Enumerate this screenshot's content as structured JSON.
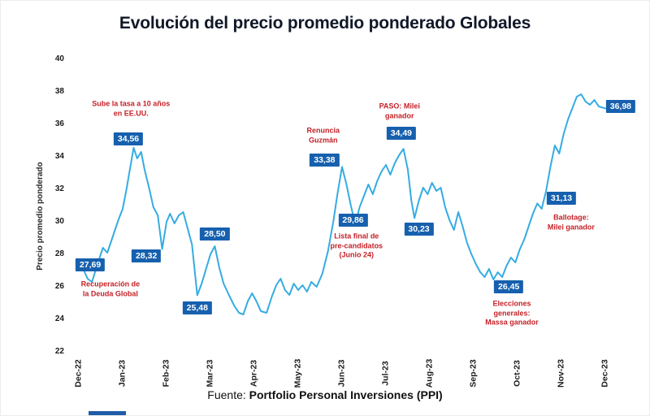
{
  "page": {
    "footer": {
      "prefix": "Fuente: ",
      "source_bold": "Portfolio Personal Inversiones (PPI)"
    },
    "banner_color": "#1f5ca9"
  },
  "chart_data": {
    "type": "line",
    "title": "Evolución del precio promedio ponderado Globales",
    "xlabel": "",
    "ylabel": "Precio promedio ponderado",
    "ylim": [
      22,
      40
    ],
    "ytick_values": [
      22,
      24,
      26,
      28,
      30,
      32,
      34,
      36,
      38,
      40
    ],
    "x_tick_labels": [
      "Dec-22",
      "Jan-23",
      "Feb-23",
      "Mar-23",
      "Apr-23",
      "May-23",
      "Jun-23",
      "Jul-23",
      "Aug-23",
      "Sep-23",
      "Oct-23",
      "Nov-23",
      "Dec-23"
    ],
    "grid": false,
    "legend": "none",
    "line_color": "#35ACE2",
    "label_box_color": "#1660AE",
    "annotation_color": "#C42127",
    "series": [
      {
        "name": "Precio promedio ponderado",
        "x": [
          0.0,
          0.1,
          0.2,
          0.3,
          0.45,
          0.55,
          0.65,
          0.8,
          0.9,
          1.0,
          1.08,
          1.15,
          1.25,
          1.33,
          1.42,
          1.5,
          1.6,
          1.7,
          1.8,
          1.9,
          2.0,
          2.08,
          2.18,
          2.28,
          2.38,
          2.48,
          2.58,
          2.7,
          2.8,
          2.9,
          3.0,
          3.1,
          3.2,
          3.3,
          3.42,
          3.55,
          3.65,
          3.75,
          3.85,
          3.95,
          4.05,
          4.15,
          4.28,
          4.4,
          4.5,
          4.6,
          4.7,
          4.8,
          4.9,
          5.0,
          5.1,
          5.2,
          5.3,
          5.42,
          5.55,
          5.68,
          5.8,
          5.9,
          6.0,
          6.1,
          6.2,
          6.3,
          6.4,
          6.5,
          6.6,
          6.7,
          6.8,
          6.9,
          7.0,
          7.1,
          7.2,
          7.3,
          7.4,
          7.5,
          7.58,
          7.65,
          7.75,
          7.85,
          7.95,
          8.05,
          8.15,
          8.25,
          8.35,
          8.45,
          8.55,
          8.65,
          8.75,
          8.85,
          8.95,
          9.05,
          9.15,
          9.25,
          9.35,
          9.45,
          9.55,
          9.65,
          9.75,
          9.85,
          9.95,
          10.05,
          10.15,
          10.25,
          10.35,
          10.45,
          10.55,
          10.65,
          10.75,
          10.85,
          10.95,
          11.05,
          11.15,
          11.25,
          11.35,
          11.45,
          11.55,
          11.65,
          11.75,
          11.85,
          12.0
        ],
        "y": [
          27.69,
          27.1,
          26.5,
          26.3,
          27.6,
          28.4,
          28.1,
          29.3,
          30.1,
          30.8,
          31.9,
          33.0,
          34.56,
          33.9,
          34.3,
          33.2,
          32.1,
          30.9,
          30.4,
          28.32,
          30.0,
          30.5,
          29.9,
          30.4,
          30.6,
          29.6,
          28.6,
          25.48,
          26.2,
          27.1,
          28.0,
          28.5,
          27.2,
          26.2,
          25.5,
          24.8,
          24.4,
          24.3,
          25.1,
          25.6,
          25.1,
          24.5,
          24.4,
          25.4,
          26.1,
          26.5,
          25.8,
          25.5,
          26.2,
          25.8,
          26.1,
          25.7,
          26.3,
          26.0,
          26.8,
          28.2,
          30.0,
          31.8,
          33.38,
          32.3,
          31.0,
          29.86,
          30.9,
          31.6,
          32.3,
          31.7,
          32.5,
          33.1,
          33.5,
          32.9,
          33.6,
          34.1,
          34.49,
          33.2,
          31.3,
          30.23,
          31.3,
          32.1,
          31.7,
          32.4,
          31.9,
          32.1,
          30.9,
          30.1,
          29.5,
          30.6,
          29.7,
          28.7,
          28.0,
          27.4,
          26.9,
          26.6,
          27.1,
          26.45,
          26.9,
          26.6,
          27.3,
          27.8,
          27.5,
          28.3,
          28.9,
          29.7,
          30.5,
          31.13,
          30.8,
          31.9,
          33.4,
          34.7,
          34.2,
          35.4,
          36.3,
          37.0,
          37.7,
          37.85,
          37.4,
          37.2,
          37.5,
          37.1,
          36.98
        ]
      }
    ],
    "point_labels": [
      {
        "text": "27,69",
        "value": 27.69,
        "x": 0.26,
        "y": 27.35
      },
      {
        "text": "34,56",
        "value": 34.56,
        "x": 1.13,
        "y": 35.1
      },
      {
        "text": "28,32",
        "value": 28.32,
        "x": 1.54,
        "y": 27.9
      },
      {
        "text": "25,48",
        "value": 25.48,
        "x": 2.7,
        "y": 24.7
      },
      {
        "text": "28,50",
        "value": 28.5,
        "x": 3.1,
        "y": 29.25
      },
      {
        "text": "33,38",
        "value": 33.38,
        "x": 5.6,
        "y": 33.8
      },
      {
        "text": "29,86",
        "value": 29.86,
        "x": 6.25,
        "y": 30.1
      },
      {
        "text": "34,49",
        "value": 34.49,
        "x": 7.35,
        "y": 35.45
      },
      {
        "text": "30,23",
        "value": 30.23,
        "x": 7.75,
        "y": 29.55
      },
      {
        "text": "26,45",
        "value": 26.45,
        "x": 9.8,
        "y": 26.0
      },
      {
        "text": "31,13",
        "value": 31.13,
        "x": 11.0,
        "y": 31.45
      },
      {
        "text": "36,98",
        "value": 36.98,
        "x": 12.35,
        "y": 37.1
      }
    ],
    "annotations": [
      {
        "lines": [
          "Sube la tasa a 10 años",
          "en EE.UU."
        ],
        "x": 1.19,
        "y": 36.95
      },
      {
        "lines": [
          "Recuperación de",
          "la Deuda Global"
        ],
        "x": 0.72,
        "y": 25.85
      },
      {
        "lines": [
          "Renuncia",
          "Guzmán"
        ],
        "x": 5.57,
        "y": 35.3
      },
      {
        "lines": [
          "Lista final de",
          "pre-candidatos",
          "(Junio 24)"
        ],
        "x": 6.33,
        "y": 28.5
      },
      {
        "lines": [
          "PASO: Milei",
          "ganador"
        ],
        "x": 7.31,
        "y": 36.8
      },
      {
        "lines": [
          "Elecciones",
          "generales:",
          "Massa ganador"
        ],
        "x": 9.87,
        "y": 24.35
      },
      {
        "lines": [
          "Ballotage:",
          "Milei ganador"
        ],
        "x": 11.22,
        "y": 29.95
      }
    ]
  }
}
